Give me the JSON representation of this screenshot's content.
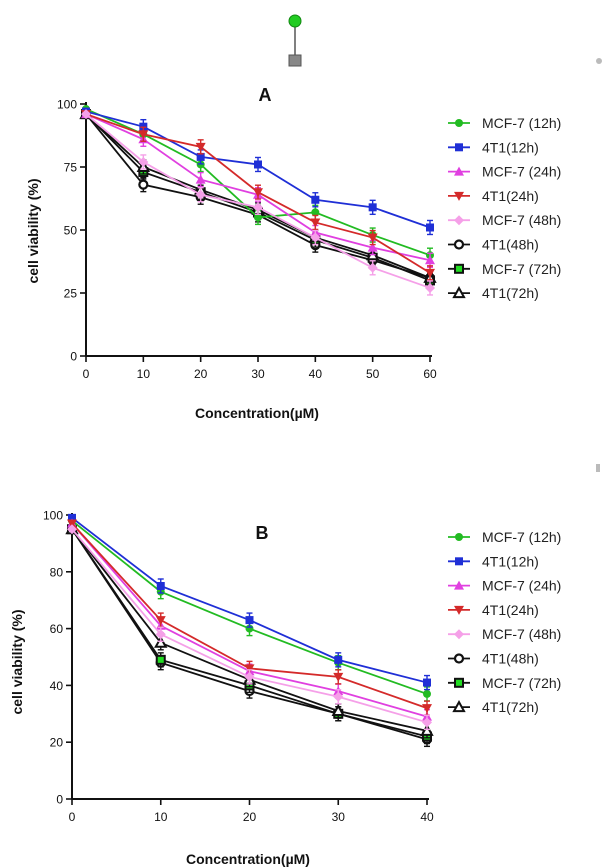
{
  "chart_data": [
    {
      "type": "line",
      "panel": "A",
      "title": "A",
      "xlabel": "Concentration(µM)",
      "ylabel": "cell viability (%)",
      "x": [
        0,
        10,
        20,
        30,
        40,
        50,
        60
      ],
      "xticks": [
        "0",
        "10",
        "20",
        "30",
        "40",
        "50",
        "60"
      ],
      "yticks": [
        "0",
        "25",
        "50",
        "75",
        "100"
      ],
      "xlim": [
        0,
        60
      ],
      "ylim": [
        0,
        100
      ],
      "grid": false,
      "legend": "right",
      "series": [
        {
          "name": "MCF-7 (12h)",
          "color": "#22bb22",
          "marker": "circle",
          "values": [
            98,
            88,
            76,
            55,
            57,
            48,
            40
          ]
        },
        {
          "name": "4T1(12h)",
          "color": "#1f2fd6",
          "marker": "square",
          "values": [
            97,
            91,
            79,
            76,
            62,
            59,
            51
          ]
        },
        {
          "name": "MCF-7 (24h)",
          "color": "#e040e0",
          "marker": "triangle-up",
          "values": [
            96,
            86,
            70,
            64,
            49,
            43,
            38
          ]
        },
        {
          "name": "4T1(24h)",
          "color": "#d42a2a",
          "marker": "triangle-down",
          "values": [
            96,
            88,
            83,
            65,
            53,
            47,
            33
          ]
        },
        {
          "name": "MCF-7 (48h)",
          "color": "#f5a0e8",
          "marker": "diamond",
          "values": [
            96,
            77,
            64,
            59,
            47,
            35,
            27
          ]
        },
        {
          "name": "4T1(48h)",
          "color": "#111111",
          "marker": "circle-open",
          "values": [
            96,
            68,
            63,
            56,
            44,
            38,
            31
          ]
        },
        {
          "name": "MCF-7 (72h)",
          "color": "#111111",
          "marker": "square-open",
          "values": [
            96,
            73,
            65,
            57,
            46,
            39,
            30
          ]
        },
        {
          "name": "4T1(72h)",
          "color": "#111111",
          "marker": "triangle-open",
          "values": [
            96,
            75,
            66,
            58,
            47,
            40,
            31
          ]
        }
      ]
    },
    {
      "type": "line",
      "panel": "B",
      "title": "B",
      "xlabel": "Concentration(µM)",
      "ylabel": "cell viability (%)",
      "x": [
        0,
        10,
        20,
        30,
        40
      ],
      "xticks": [
        "0",
        "10",
        "20",
        "30",
        "40"
      ],
      "yticks": [
        "0",
        "20",
        "40",
        "60",
        "80",
        "100"
      ],
      "xlim": [
        0,
        40
      ],
      "ylim": [
        0,
        100
      ],
      "grid": false,
      "legend": "right",
      "series": [
        {
          "name": "MCF-7 (12h)",
          "color": "#22bb22",
          "marker": "circle",
          "values": [
            98,
            73,
            60,
            48,
            37
          ]
        },
        {
          "name": "4T1(12h)",
          "color": "#1f2fd6",
          "marker": "square",
          "values": [
            99,
            75,
            63,
            49,
            41
          ]
        },
        {
          "name": "MCF-7 (24h)",
          "color": "#e040e0",
          "marker": "triangle-up",
          "values": [
            97,
            61,
            45,
            38,
            29
          ]
        },
        {
          "name": "4T1(24h)",
          "color": "#d42a2a",
          "marker": "triangle-down",
          "values": [
            97,
            63,
            46,
            43,
            32
          ]
        },
        {
          "name": "MCF-7 (48h)",
          "color": "#f5a0e8",
          "marker": "diamond",
          "values": [
            95,
            58,
            43,
            36,
            27
          ]
        },
        {
          "name": "4T1(48h)",
          "color": "#111111",
          "marker": "circle-open",
          "values": [
            95,
            48,
            38,
            30,
            21
          ]
        },
        {
          "name": "MCF-7 (72h)",
          "color": "#111111",
          "marker": "square-open",
          "values": [
            95,
            49,
            40,
            30,
            22
          ]
        },
        {
          "name": "4T1(72h)",
          "color": "#111111",
          "marker": "triangle-open",
          "values": [
            95,
            55,
            42,
            31,
            24
          ]
        }
      ]
    }
  ]
}
